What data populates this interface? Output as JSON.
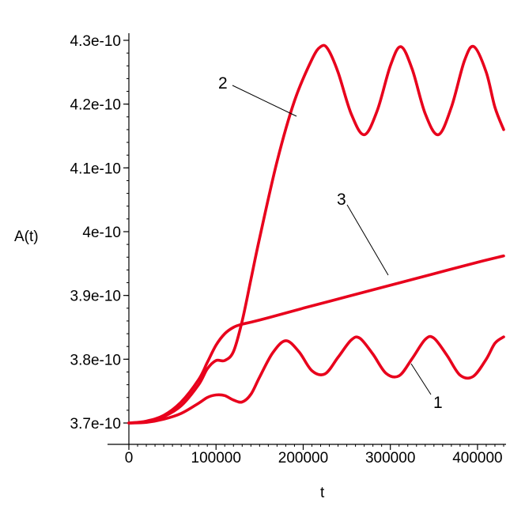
{
  "chart_data": {
    "type": "line",
    "xlabel": "t",
    "ylabel": "A(t)",
    "xlim": [
      0,
      430000
    ],
    "ylim": [
      3.7e-10,
      4.3e-10
    ],
    "grid": false,
    "x_ticks": [
      {
        "value": 0,
        "label": "0"
      },
      {
        "value": 100000,
        "label": "100000"
      },
      {
        "value": 200000,
        "label": "200000"
      },
      {
        "value": 300000,
        "label": "300000"
      },
      {
        "value": 400000,
        "label": "400000"
      }
    ],
    "y_ticks": [
      {
        "value": 3.7e-10,
        "label": "3.7e-10"
      },
      {
        "value": 3.8e-10,
        "label": "3.8e-10"
      },
      {
        "value": 3.9e-10,
        "label": "3.9e-10"
      },
      {
        "value": 4e-10,
        "label": "4e-10"
      },
      {
        "value": 4.1e-10,
        "label": "4.1e-10"
      },
      {
        "value": 4.2e-10,
        "label": "4.2e-10"
      },
      {
        "value": 4.3e-10,
        "label": "4.3e-10"
      }
    ],
    "line_color": "#e8001c",
    "series": [
      {
        "label": "1",
        "label_point": [
          3.8e-10
        ],
        "x": [
          0,
          20000,
          40000,
          60000,
          80000,
          90000,
          100000,
          110000,
          120000,
          130000,
          140000,
          150000,
          165000,
          180000,
          195000,
          210000,
          225000,
          240000,
          255000,
          265000,
          280000,
          295000,
          310000,
          325000,
          340000,
          350000,
          365000,
          380000,
          395000,
          410000,
          420000,
          430000
        ],
        "y": [
          3.7e-10,
          3.701e-10,
          3.706e-10,
          3.715e-10,
          3.731e-10,
          3.74e-10,
          3.744e-10,
          3.743e-10,
          3.736e-10,
          3.733e-10,
          3.745e-10,
          3.772e-10,
          3.81e-10,
          3.829e-10,
          3.812e-10,
          3.782e-10,
          3.777e-10,
          3.803e-10,
          3.83e-10,
          3.833e-10,
          3.808e-10,
          3.778e-10,
          3.774e-10,
          3.801e-10,
          3.831e-10,
          3.833e-10,
          3.806e-10,
          3.775e-10,
          3.773e-10,
          3.8e-10,
          3.825e-10,
          3.835e-10
        ]
      },
      {
        "label": "2",
        "x": [
          0,
          20000,
          40000,
          60000,
          80000,
          90000,
          100000,
          110000,
          120000,
          130000,
          140000,
          150000,
          170000,
          190000,
          210000,
          220000,
          228000,
          240000,
          255000,
          270000,
          285000,
          300000,
          312000,
          325000,
          340000,
          355000,
          370000,
          385000,
          396000,
          410000,
          420000,
          430000
        ],
        "y": [
          3.7e-10,
          3.702e-10,
          3.71e-10,
          3.727e-10,
          3.76e-10,
          3.785e-10,
          3.798e-10,
          3.798e-10,
          3.812e-10,
          3.86e-10,
          3.925e-10,
          3.99e-10,
          4.11e-10,
          4.205e-10,
          4.27e-10,
          4.29e-10,
          4.287e-10,
          4.25e-10,
          4.185e-10,
          4.152e-10,
          4.19e-10,
          4.26e-10,
          4.29e-10,
          4.255e-10,
          4.185e-10,
          4.152e-10,
          4.195e-10,
          4.268e-10,
          4.29e-10,
          4.25e-10,
          4.195e-10,
          4.16e-10
        ]
      },
      {
        "label": "3",
        "x": [
          0,
          20000,
          40000,
          60000,
          80000,
          90000,
          100000,
          110000,
          120000,
          130000,
          140000,
          160000,
          200000,
          250000,
          300000,
          350000,
          400000,
          430000
        ],
        "y": [
          3.7e-10,
          3.703e-10,
          3.712e-10,
          3.733e-10,
          3.768e-10,
          3.795e-10,
          3.822e-10,
          3.84e-10,
          3.85e-10,
          3.855e-10,
          3.858e-10,
          3.865e-10,
          3.88e-10,
          3.898e-10,
          3.916e-10,
          3.934e-10,
          3.952e-10,
          3.962e-10
        ]
      }
    ],
    "annotations": [
      {
        "text": "1",
        "target_series": "1"
      },
      {
        "text": "2",
        "target_series": "2"
      },
      {
        "text": "3",
        "target_series": "3"
      }
    ]
  }
}
